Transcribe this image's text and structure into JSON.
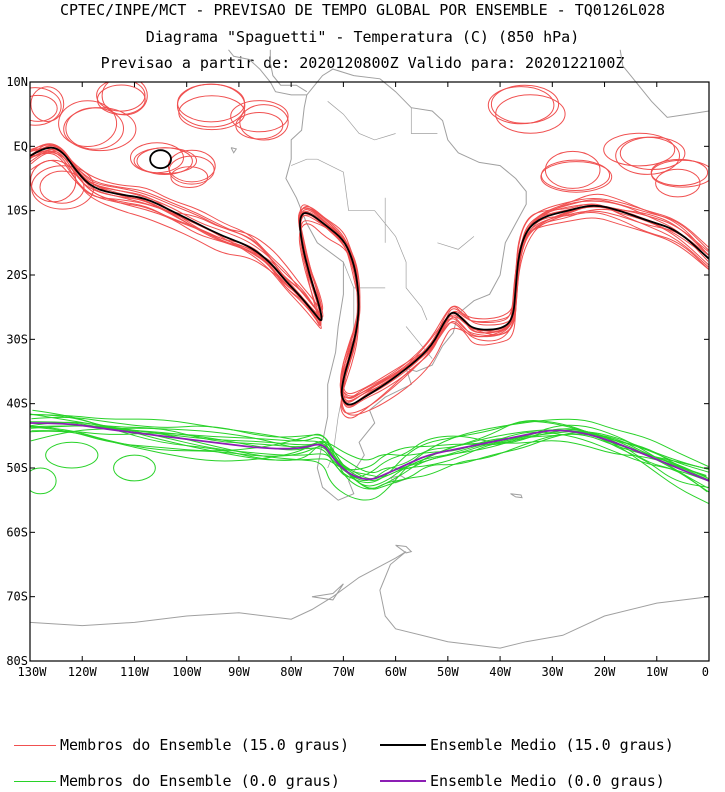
{
  "header": {
    "line1": "CPTEC/INPE/MCT - PREVISAO DE TEMPO GLOBAL POR ENSEMBLE - TQ0126L028",
    "line2": "Diagrama \"Spaguetti\" - Temperatura (C) (850 hPa)",
    "line3": "Previsao a partir de: 2020120800Z  Valido para: 2020122100Z"
  },
  "map": {
    "lat_labels": [
      "10N",
      "EQ",
      "10S",
      "20S",
      "30S",
      "40S",
      "50S",
      "60S",
      "70S",
      "80S"
    ],
    "lat_values": [
      10,
      0,
      -10,
      -20,
      -30,
      -40,
      -50,
      -60,
      -70,
      -80
    ],
    "lon_labels": [
      "130W",
      "120W",
      "110W",
      "100W",
      "90W",
      "80W",
      "70W",
      "60W",
      "50W",
      "40W",
      "30W",
      "20W",
      "10W",
      "0"
    ],
    "lon_values": [
      -130,
      -120,
      -110,
      -100,
      -90,
      -80,
      -70,
      -60,
      -50,
      -40,
      -30,
      -20,
      -10,
      0
    ],
    "lon_range": [
      -130,
      0
    ],
    "lat_range": [
      -80,
      10
    ],
    "coast_color": "#a0a0a0",
    "members_15_color": "#f05050",
    "mean_15_color": "#000000",
    "members_0_color": "#28d228",
    "mean_0_color": "#8c1eb4"
  },
  "legend": {
    "members_15": "Membros do Ensemble (15.0 graus)",
    "mean_15": "Ensemble Medio (15.0 graus)",
    "members_0": "Membros do Ensemble (0.0 graus)",
    "mean_0": "Ensemble Medio (0.0 graus)"
  }
}
